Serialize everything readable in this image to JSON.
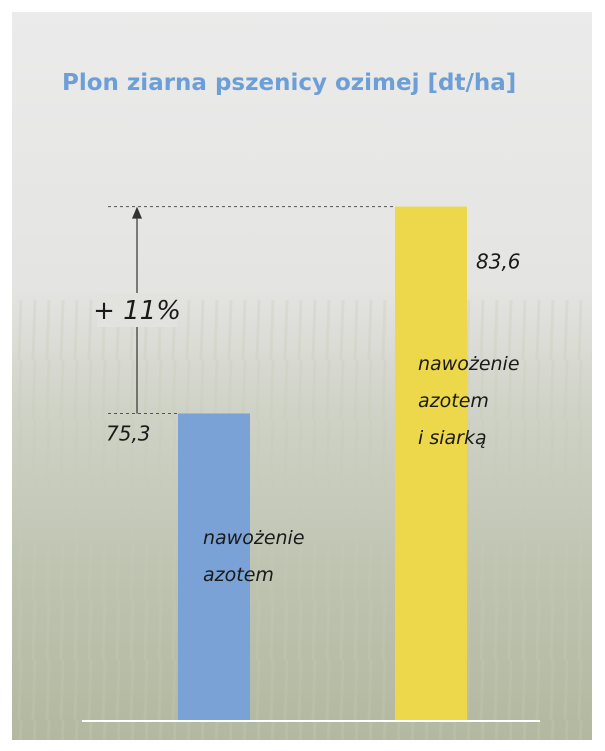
{
  "chart_data": {
    "type": "bar",
    "title": "Plon ziarna pszenicy ozimej [dt/ha]",
    "categories": [
      "nawożenie\nazotem",
      "nawożenie\nazotem\ni siarką"
    ],
    "values": [
      75.3,
      83.6
    ],
    "value_labels": [
      "75,3",
      "83,6"
    ],
    "colors": [
      "#7aa2d6",
      "#ecd84a"
    ],
    "annotation": "+ 11%",
    "ylim": [
      63,
      89
    ]
  }
}
